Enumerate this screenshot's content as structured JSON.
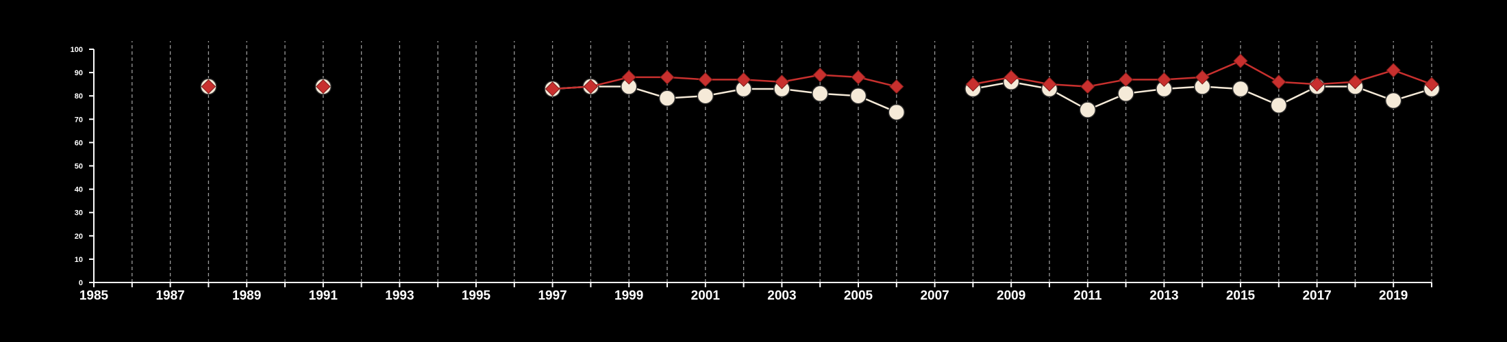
{
  "chart_data": {
    "type": "line",
    "title": "",
    "xlabel": "",
    "ylabel": "",
    "xlim": [
      1985,
      2020
    ],
    "ylim": [
      0,
      100
    ],
    "x_ticks": [
      1985,
      1987,
      1989,
      1991,
      1993,
      1995,
      1997,
      1999,
      2001,
      2003,
      2005,
      2007,
      2009,
      2011,
      2013,
      2015,
      2017,
      2019
    ],
    "y_ticks": [
      0,
      10,
      20,
      30,
      40,
      50,
      60,
      70,
      80,
      90,
      100
    ],
    "grid": "vertical dashed lines at each year",
    "legend": "none",
    "background": "#000000",
    "series": [
      {
        "color": "#f5ead8",
        "edge_color": "#2a2a2a",
        "marker": "circle",
        "x": [
          1988,
          1991,
          1997,
          1998,
          1999,
          2000,
          2001,
          2002,
          2003,
          2004,
          2005,
          2006,
          2008,
          2009,
          2010,
          2011,
          2012,
          2013,
          2014,
          2015,
          2016,
          2017,
          2018,
          2019,
          2020
        ],
        "y": [
          84,
          84,
          83,
          84,
          84,
          79,
          80,
          83,
          83,
          81,
          80,
          73,
          83,
          86,
          83,
          74,
          81,
          83,
          84,
          83,
          76,
          84,
          84,
          78,
          83
        ]
      },
      {
        "color": "#c8302e",
        "marker": "diamond",
        "x": [
          1988,
          1991,
          1997,
          1998,
          1999,
          2000,
          2001,
          2002,
          2003,
          2004,
          2005,
          2006,
          2008,
          2009,
          2010,
          2011,
          2012,
          2013,
          2014,
          2015,
          2016,
          2017,
          2018,
          2019,
          2020
        ],
        "y": [
          84,
          84,
          83,
          84,
          88,
          88,
          87,
          87,
          86,
          89,
          88,
          84,
          85,
          88,
          85,
          84,
          87,
          87,
          88,
          95,
          86,
          85,
          86,
          91,
          85
        ]
      }
    ]
  }
}
